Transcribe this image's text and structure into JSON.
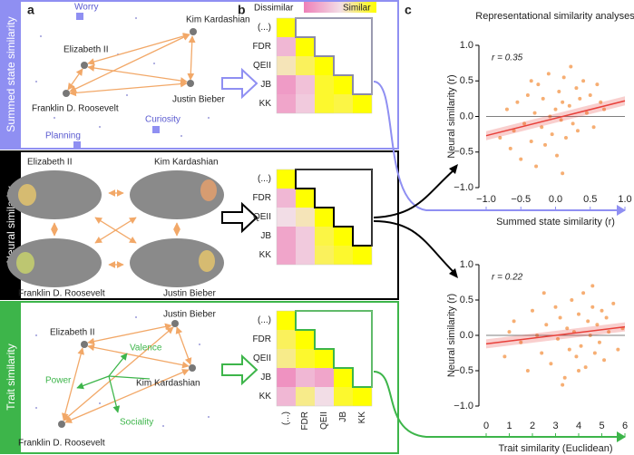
{
  "panel_labels": [
    "a",
    "b",
    "c"
  ],
  "row_labels": [
    {
      "text": "Summed state similarity",
      "color": "#8f8ff2"
    },
    {
      "text": "Neural similarity",
      "color": "#000000"
    },
    {
      "text": "Trait similarity",
      "color": "#3db54a"
    }
  ],
  "state_network": {
    "people": [
      "Kim Kardashian",
      "Elizabeth II",
      "Justin Bieber",
      "Franklin D. Roosevelt"
    ],
    "states": [
      "Worry",
      "Curiosity",
      "Planning"
    ]
  },
  "neural_network": {
    "people": [
      "Elizabeth II",
      "Kim Kardashian",
      "Franklin D. Roosevelt",
      "Justin Bieber"
    ]
  },
  "trait_network": {
    "people": [
      "Justin Bieber",
      "Elizabeth II",
      "Kim Kardashian",
      "Franklin D. Roosevelt"
    ],
    "dimensions": [
      "Valence",
      "Power",
      "Sociality"
    ]
  },
  "colorbar": {
    "low": "Dissimilar",
    "high": "Similar",
    "colors": [
      "#ee7fb8",
      "#f2dde6",
      "#ffff00"
    ]
  },
  "heatmaps": [
    {
      "rows": [
        "(...)",
        "FDR",
        "QEII",
        "JB",
        "KK"
      ],
      "outline": "#8a8aa8",
      "values": [
        [
          1,
          null,
          null,
          null,
          null
        ],
        [
          0.3,
          1,
          null,
          null,
          null
        ],
        [
          0.6,
          0.8,
          1,
          null,
          null
        ],
        [
          0.15,
          0.35,
          0.9,
          1,
          null
        ],
        [
          0.2,
          0.4,
          0.9,
          0.85,
          1
        ]
      ]
    },
    {
      "rows": [
        "(...)",
        "FDR",
        "QEII",
        "JB",
        "KK"
      ],
      "outline": "#000000",
      "values": [
        [
          1,
          null,
          null,
          null,
          null
        ],
        [
          0.3,
          1,
          null,
          null,
          null
        ],
        [
          0.5,
          0.6,
          1,
          null,
          null
        ],
        [
          0.2,
          0.4,
          0.85,
          1,
          null
        ],
        [
          0.2,
          0.4,
          0.8,
          0.9,
          1
        ]
      ]
    },
    {
      "rows": [
        "(...)",
        "FDR",
        "QEII",
        "JB",
        "KK"
      ],
      "columns": [
        "(...)",
        "FDR",
        "QEII",
        "JB",
        "KK"
      ],
      "outline": "#3db54a",
      "values": [
        [
          1,
          null,
          null,
          null,
          null
        ],
        [
          0.8,
          1,
          null,
          null,
          null
        ],
        [
          0.7,
          0.9,
          1,
          null,
          null
        ],
        [
          0.1,
          0.3,
          0.2,
          1,
          null
        ],
        [
          0.3,
          0.7,
          0.5,
          0.9,
          1
        ]
      ]
    }
  ],
  "chart_title": "Representational similarity analyses",
  "chart_data": [
    {
      "type": "scatter",
      "annotation": "r = 0.35",
      "xlabel": "Summed state similarity (r)",
      "ylabel": "Neural similarity (r)",
      "color": "#f5a05a",
      "fit_color": "#e8403a",
      "xaxis_color": "#8f8ff2",
      "reference_line": 0,
      "xlim": [
        -1,
        1
      ],
      "ylim": [
        -1,
        1
      ],
      "xticks": [
        {
          "value": -1,
          "label": "−1.0"
        },
        {
          "value": -0.5,
          "label": "−0.5"
        },
        {
          "value": 0,
          "label": "0.0"
        },
        {
          "value": 0.5,
          "label": "0.5"
        },
        {
          "value": 1,
          "label": "1.0"
        }
      ],
      "yticks": [
        {
          "value": -1,
          "label": "−1.0"
        },
        {
          "value": -0.5,
          "label": "−0.5"
        },
        {
          "value": 0,
          "label": "0.0"
        },
        {
          "value": 0.5,
          "label": "0.5"
        },
        {
          "value": 1,
          "label": "1.0"
        }
      ],
      "x": [
        -0.8,
        -0.7,
        -0.65,
        -0.6,
        -0.55,
        -0.5,
        -0.45,
        -0.4,
        -0.35,
        -0.3,
        -0.28,
        -0.25,
        -0.2,
        -0.18,
        -0.15,
        -0.1,
        -0.08,
        -0.05,
        0,
        0.02,
        0.05,
        0.08,
        0.1,
        0.12,
        0.15,
        0.2,
        0.22,
        0.25,
        0.3,
        0.32,
        0.35,
        0.4,
        0.45,
        0.5,
        0.55,
        0.6,
        0.65,
        0.7,
        -0.35,
        0.1
      ],
      "values": [
        -0.3,
        0.1,
        -0.45,
        -0.2,
        0.2,
        -0.6,
        -0.1,
        0.3,
        -0.35,
        0.05,
        -0.7,
        0.45,
        -0.15,
        0.25,
        -0.4,
        0.6,
        0,
        -0.25,
        0.1,
        -0.55,
        0.35,
        -0.05,
        0.2,
        0.55,
        -0.3,
        0.15,
        0.7,
        -0.1,
        0.4,
        -0.2,
        0.25,
        0.5,
        0.05,
        0.3,
        -0.15,
        0.45,
        0.2,
        0.1,
        0.5,
        -0.8
      ],
      "fit": {
        "x": [
          -1,
          1
        ],
        "values": [
          -0.27,
          0.22
        ]
      }
    },
    {
      "type": "scatter",
      "annotation": "r = 0.22",
      "xlabel": "Trait similarity (Euclidean)",
      "ylabel": "Neural similarity (r)",
      "color": "#f5a05a",
      "fit_color": "#e8403a",
      "xaxis_color": "#3db54a",
      "reference_line": 0,
      "xlim": [
        0,
        6
      ],
      "ylim": [
        -1,
        1
      ],
      "xticks": [
        0,
        1,
        2,
        3,
        4,
        5,
        6
      ],
      "yticks": [
        {
          "value": -1,
          "label": "−1.0"
        },
        {
          "value": -0.5,
          "label": "−0.5"
        },
        {
          "value": 0,
          "label": "0.0"
        },
        {
          "value": 0.5,
          "label": "0.5"
        },
        {
          "value": 1,
          "label": "1.0"
        }
      ],
      "x": [
        0.8,
        1.2,
        1.5,
        1.8,
        2,
        2.2,
        2.4,
        2.6,
        2.8,
        3,
        3.1,
        3.2,
        3.4,
        3.5,
        3.6,
        3.7,
        3.8,
        3.9,
        4,
        4.1,
        4.2,
        4.3,
        4.4,
        4.5,
        4.6,
        4.7,
        4.8,
        4.9,
        5,
        5.1,
        5.2,
        5.3,
        5.5,
        5.7,
        5.9,
        2.5,
        3.3,
        4,
        4.6,
        1
      ],
      "values": [
        -0.3,
        0.2,
        -0.1,
        -0.5,
        0.35,
        0,
        -0.25,
        0.15,
        -0.4,
        0.4,
        -0.05,
        0.25,
        -0.6,
        0.1,
        -0.2,
        0.5,
        0.05,
        -0.3,
        0.3,
        -0.15,
        0.6,
        -0.45,
        0.2,
        0,
        0.4,
        -0.25,
        0.15,
        -0.1,
        0.35,
        -0.35,
        0.25,
        0.05,
        0.45,
        -0.2,
        0.1,
        0.6,
        -0.7,
        -0.5,
        0.7,
        0.05
      ],
      "fit": {
        "x": [
          0,
          6
        ],
        "values": [
          -0.12,
          0.12
        ]
      }
    }
  ]
}
